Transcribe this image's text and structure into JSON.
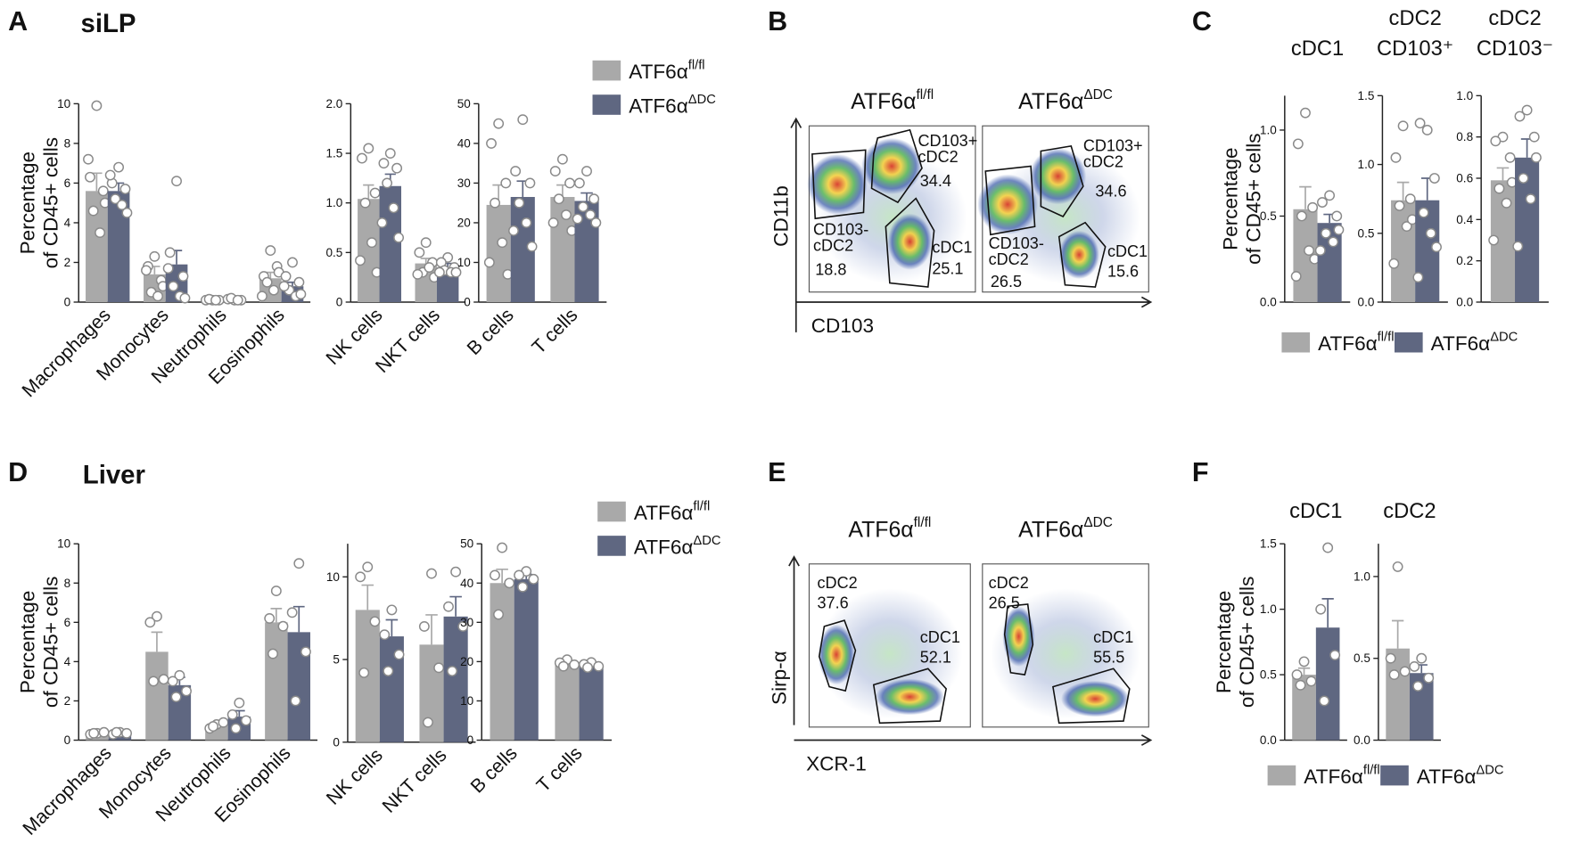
{
  "panels": [
    {
      "label": "A",
      "title": "siLP"
    },
    {
      "label": "B"
    },
    {
      "label": "C"
    },
    {
      "label": "D",
      "title": "Liver"
    },
    {
      "label": "E"
    },
    {
      "label": "F"
    }
  ],
  "chart_data": [
    {
      "type": "bar",
      "ylabel": [
        "Percentage",
        "of CD45+ cells"
      ],
      "legend": "right",
      "categories": [
        "Macrophages",
        "Monocytes",
        "Neutrophils",
        "Eosinophils"
      ],
      "ylim": [
        0,
        10
      ],
      "yticks": [
        0,
        2,
        4,
        6,
        8,
        10
      ],
      "series": [
        {
          "name": "ATF6α",
          "superscript": "fl/fl",
          "color": "#a9a9a9",
          "values": [
            5.6,
            1.4,
            0.1,
            1.2
          ],
          "errors": [
            0.9,
            0.4,
            0.03,
            0.3
          ],
          "points": [
            [
              9.9,
              6.3,
              5.6,
              4.6,
              3.5,
              7.2,
              5.0
            ],
            [
              2.3,
              1.8,
              1.1,
              0.5,
              0.3,
              1.6,
              0.8
            ],
            [
              0.1,
              0.1,
              0.1,
              0.15,
              0.1
            ],
            [
              2.6,
              1.3,
              1.8,
              1.0,
              0.6,
              0.3,
              1.5
            ]
          ]
        },
        {
          "name": "ATF6α",
          "superscript": "ΔDC",
          "color": "#5f6781",
          "values": [
            5.6,
            1.9,
            0.1,
            0.8
          ],
          "errors": [
            0.4,
            0.7,
            0.03,
            0.2
          ],
          "points": [
            [
              6.8,
              6.0,
              5.7,
              5.2,
              4.9,
              6.4,
              4.5
            ],
            [
              6.1,
              2.5,
              1.3,
              0.8,
              0.3,
              1.7,
              0.2
            ],
            [
              0.1,
              0.15,
              0.1,
              0.2,
              0.1
            ],
            [
              2.0,
              1.3,
              1.0,
              0.6,
              0.3,
              0.8,
              0.4
            ]
          ]
        }
      ]
    },
    {
      "type": "bar",
      "categories": [
        "NK cells",
        "NKT cells"
      ],
      "ylim": [
        0,
        2
      ],
      "yticks": [
        0,
        0.5,
        {
          "value": 1,
          "label": "1.0"
        },
        1.5,
        {
          "value": 2,
          "label": "2.0"
        }
      ],
      "series": [
        {
          "name": "ATF6α",
          "superscript": "fl/fl",
          "color": "#a9a9a9",
          "values": [
            1.04,
            0.39
          ],
          "errors": [
            0.14,
            0.05
          ],
          "points": [
            [
              1.55,
              1.45,
              1.1,
              1.0,
              0.6,
              0.42,
              0.3
            ],
            [
              0.6,
              0.5,
              0.4,
              0.3,
              0.35,
              0.28,
              0.25
            ]
          ]
        },
        {
          "name": "ATF6α",
          "superscript": "ΔDC",
          "color": "#5f6781",
          "values": [
            1.17,
            0.35
          ],
          "errors": [
            0.12,
            0.04
          ],
          "points": [
            [
              1.5,
              1.4,
              1.35,
              1.2,
              0.95,
              0.8,
              0.65
            ],
            [
              0.45,
              0.4,
              0.35,
              0.32,
              0.3,
              0.3,
              0.3
            ]
          ]
        }
      ]
    },
    {
      "type": "bar",
      "categories": [
        "B cells",
        "T cells"
      ],
      "ylim": [
        0,
        50
      ],
      "yticks": [
        0,
        10,
        20,
        30,
        40,
        50
      ],
      "series": [
        {
          "name": "ATF6α",
          "superscript": "fl/fl",
          "color": "#a9a9a9",
          "values": [
            24.5,
            26.5
          ],
          "errors": [
            5,
            3
          ],
          "points": [
            [
              45,
              40,
              30,
              25,
              15,
              10,
              7
            ],
            [
              36,
              33,
              30,
              26,
              22,
              20,
              18
            ]
          ]
        },
        {
          "name": "ATF6α",
          "superscript": "ΔDC",
          "color": "#5f6781",
          "values": [
            26.5,
            25.5
          ],
          "errors": [
            4,
            2
          ],
          "points": [
            [
              46,
              33,
              30,
              25,
              20,
              18,
              14
            ],
            [
              33,
              30,
              26,
              24,
              22,
              21,
              20
            ]
          ]
        }
      ]
    },
    {
      "type": "bar",
      "title": [
        "cDC1"
      ],
      "ylabel": [
        "Percentage",
        "of CD45+ cells"
      ],
      "legend": "bottom",
      "categories": [
        null
      ],
      "ylim": [
        0,
        1.2
      ],
      "yticks": [
        {
          "value": 0,
          "label": "0.0"
        },
        0.5,
        {
          "value": 1,
          "label": "1.0"
        }
      ],
      "series": [
        {
          "name": "ATF6α",
          "superscript": "fl/fl",
          "color": "#a9a9a9",
          "values": [
            0.54
          ],
          "errors": [
            0.13
          ],
          "points": [
            [
              1.1,
              0.92,
              0.55,
              0.5,
              0.3,
              0.15,
              0.25
            ]
          ]
        },
        {
          "name": "ATF6α",
          "superscript": "ΔDC",
          "color": "#5f6781",
          "values": [
            0.46
          ],
          "errors": [
            0.05
          ],
          "points": [
            [
              0.62,
              0.58,
              0.5,
              0.4,
              0.35,
              0.3,
              0.42
            ]
          ]
        }
      ]
    },
    {
      "type": "bar",
      "title": [
        "cDC2",
        "CD103⁺"
      ],
      "categories": [
        null
      ],
      "ylim": [
        0,
        1.5
      ],
      "yticks": [
        {
          "value": 0,
          "label": "0.0"
        },
        0.5,
        {
          "value": 1,
          "label": "1.0"
        },
        1.5
      ],
      "series": [
        {
          "name": "ATF6α",
          "superscript": "fl/fl",
          "color": "#a9a9a9",
          "values": [
            0.74
          ],
          "errors": [
            0.13
          ],
          "points": [
            [
              1.28,
              1.05,
              0.75,
              0.7,
              0.55,
              0.28,
              0.6
            ]
          ]
        },
        {
          "name": "ATF6α",
          "superscript": "ΔDC",
          "color": "#5f6781",
          "values": [
            0.74
          ],
          "errors": [
            0.16
          ],
          "points": [
            [
              1.25,
              1.3,
              0.9,
              0.65,
              0.5,
              0.18,
              0.4
            ]
          ]
        }
      ]
    },
    {
      "type": "bar",
      "title": [
        "cDC2",
        "CD103⁻"
      ],
      "categories": [
        null
      ],
      "ylim": [
        0,
        1
      ],
      "yticks": [
        {
          "value": 0,
          "label": "0.0"
        },
        0.2,
        0.4,
        0.6,
        0.8,
        {
          "value": 1,
          "label": "1.0"
        }
      ],
      "series": [
        {
          "name": "ATF6α",
          "superscript": "fl/fl",
          "color": "#a9a9a9",
          "values": [
            0.59
          ],
          "errors": [
            0.06
          ],
          "points": [
            [
              0.8,
              0.78,
              0.7,
              0.55,
              0.48,
              0.3,
              0.58
            ]
          ]
        },
        {
          "name": "ATF6α",
          "superscript": "ΔDC",
          "color": "#5f6781",
          "values": [
            0.7
          ],
          "errors": [
            0.09
          ],
          "points": [
            [
              0.93,
              0.9,
              0.8,
              0.6,
              0.5,
              0.27,
              0.7
            ]
          ]
        }
      ]
    },
    {
      "type": "bar",
      "ylabel": [
        "Percentage",
        "of CD45+ cells"
      ],
      "legend": "right",
      "categories": [
        "Macrophages",
        "Monocytes",
        "Neutrophils",
        "Eosinophils"
      ],
      "ylim": [
        0,
        10
      ],
      "yticks": [
        0,
        2,
        4,
        6,
        8,
        10
      ],
      "series": [
        {
          "name": "ATF6α",
          "superscript": "fl/fl",
          "color": "#a9a9a9",
          "values": [
            0.35,
            4.5,
            0.75,
            6.0
          ],
          "errors": [
            0.05,
            1.0,
            0.15,
            0.7
          ],
          "points": [
            [
              0.35,
              0.3,
              0.4,
              0.35
            ],
            [
              6.3,
              6.0,
              3.1,
              3.0
            ],
            [
              0.8,
              0.6,
              0.9,
              0.7
            ],
            [
              7.6,
              6.2,
              5.8,
              4.4
            ]
          ]
        },
        {
          "name": "ATF6α",
          "superscript": "ΔDC",
          "color": "#5f6781",
          "values": [
            0.35,
            2.8,
            1.2,
            5.5
          ],
          "errors": [
            0.05,
            0.4,
            0.3,
            1.3
          ],
          "points": [
            [
              0.4,
              0.3,
              0.35,
              0.4
            ],
            [
              3.3,
              3.0,
              2.5,
              2.2
            ],
            [
              1.9,
              1.3,
              1.0,
              0.6
            ],
            [
              9.0,
              6.5,
              4.5,
              2.0
            ]
          ]
        }
      ]
    },
    {
      "type": "bar",
      "categories": [
        "NK cells",
        "NKT cells"
      ],
      "ylim": [
        0,
        12
      ],
      "yticks": [
        0,
        5,
        10
      ],
      "series": [
        {
          "name": "ATF6α",
          "superscript": "fl/fl",
          "color": "#a9a9a9",
          "values": [
            8.0,
            5.9
          ],
          "errors": [
            1.5,
            1.8
          ],
          "points": [
            [
              10.6,
              10.0,
              7.3,
              4.2
            ],
            [
              10.2,
              7.0,
              4.5,
              1.2
            ]
          ]
        },
        {
          "name": "ATF6α",
          "superscript": "ΔDC",
          "color": "#5f6781",
          "values": [
            6.4,
            7.6
          ],
          "errors": [
            1.0,
            1.2
          ],
          "points": [
            [
              8.0,
              6.5,
              5.3,
              4.3
            ],
            [
              10.3,
              8.2,
              7.0,
              4.3
            ]
          ]
        }
      ]
    },
    {
      "type": "bar",
      "categories": [
        "B cells",
        "T cells"
      ],
      "ylim": [
        0,
        50
      ],
      "yticks": [
        0,
        10,
        20,
        30,
        40,
        50
      ],
      "series": [
        {
          "name": "ATF6α",
          "superscript": "fl/fl",
          "color": "#a9a9a9",
          "values": [
            40,
            19.5
          ],
          "errors": [
            3.5,
            0.7
          ],
          "points": [
            [
              49,
              42,
              40,
              32
            ],
            [
              20.5,
              19.7,
              19.2,
              18.8
            ]
          ]
        },
        {
          "name": "ATF6α",
          "superscript": "ΔDC",
          "color": "#5f6781",
          "values": [
            41,
            19
          ],
          "errors": [
            1.2,
            0.5
          ],
          "points": [
            [
              43,
              42,
              41,
              39
            ],
            [
              19.8,
              19.3,
              18.8,
              18.5
            ]
          ]
        }
      ]
    },
    {
      "type": "bar",
      "title": [
        "cDC1"
      ],
      "ylabel": [
        "Percentage",
        "of CD45+ cells"
      ],
      "legend": "bottom",
      "categories": [
        null
      ],
      "ylim": [
        0,
        1.5
      ],
      "yticks": [
        {
          "value": 0,
          "label": "0.0"
        },
        0.5,
        {
          "value": 1,
          "label": "1.0"
        },
        1.5
      ],
      "series": [
        {
          "name": "ATF6α",
          "superscript": "fl/fl",
          "color": "#a9a9a9",
          "values": [
            0.5
          ],
          "errors": [
            0.05
          ],
          "points": [
            [
              0.6,
              0.5,
              0.45,
              0.42
            ]
          ]
        },
        {
          "name": "ATF6α",
          "superscript": "ΔDC",
          "color": "#5f6781",
          "values": [
            0.86
          ],
          "errors": [
            0.22
          ],
          "points": [
            [
              1.47,
              1.0,
              0.65,
              0.3
            ]
          ]
        }
      ]
    },
    {
      "type": "bar",
      "title": [
        "cDC2"
      ],
      "categories": [
        null
      ],
      "ylim": [
        0,
        1.2
      ],
      "yticks": [
        {
          "value": 0,
          "label": "0.0"
        },
        0.5,
        {
          "value": 1,
          "label": "1.0"
        }
      ],
      "series": [
        {
          "name": "ATF6α",
          "superscript": "fl/fl",
          "color": "#a9a9a9",
          "values": [
            0.56
          ],
          "errors": [
            0.17
          ],
          "points": [
            [
              1.06,
              0.5,
              0.42,
              0.4
            ]
          ]
        },
        {
          "name": "ATF6α",
          "superscript": "ΔDC",
          "color": "#5f6781",
          "values": [
            0.41
          ],
          "errors": [
            0.05
          ],
          "points": [
            [
              0.5,
              0.45,
              0.38,
              0.33
            ]
          ]
        }
      ]
    }
  ],
  "flow_plots": [
    {
      "xlabel": "CD103",
      "ylabel": "CD11b",
      "samples": [
        {
          "name": "ATF6α",
          "superscript": "fl/fl",
          "gates": [
            {
              "name": [
                "CD103+",
                "cDC2"
              ],
              "value": 34.4
            },
            {
              "name": [
                "CD103-",
                "cDC2"
              ],
              "value": 18.8
            },
            {
              "name": [
                "cDC1"
              ],
              "value": 25.1
            }
          ]
        },
        {
          "name": "ATF6α",
          "superscript": "ΔDC",
          "gates": [
            {
              "name": [
                "CD103+",
                "cDC2"
              ],
              "value": 34.6
            },
            {
              "name": [
                "CD103-",
                "cDC2"
              ],
              "value": 26.5
            },
            {
              "name": [
                "cDC1"
              ],
              "value": 15.6
            }
          ]
        }
      ]
    },
    {
      "xlabel": "XCR-1",
      "ylabel": "Sirp-α",
      "samples": [
        {
          "name": "ATF6α",
          "superscript": "fl/fl",
          "gates": [
            {
              "name": [
                "cDC2"
              ],
              "value": 37.6
            },
            {
              "name": [
                "cDC1"
              ],
              "value": 52.1
            }
          ]
        },
        {
          "name": "ATF6α",
          "superscript": "ΔDC",
          "gates": [
            {
              "name": [
                "cDC2"
              ],
              "value": 26.5
            },
            {
              "name": [
                "cDC1"
              ],
              "value": 55.5
            }
          ]
        }
      ]
    }
  ]
}
